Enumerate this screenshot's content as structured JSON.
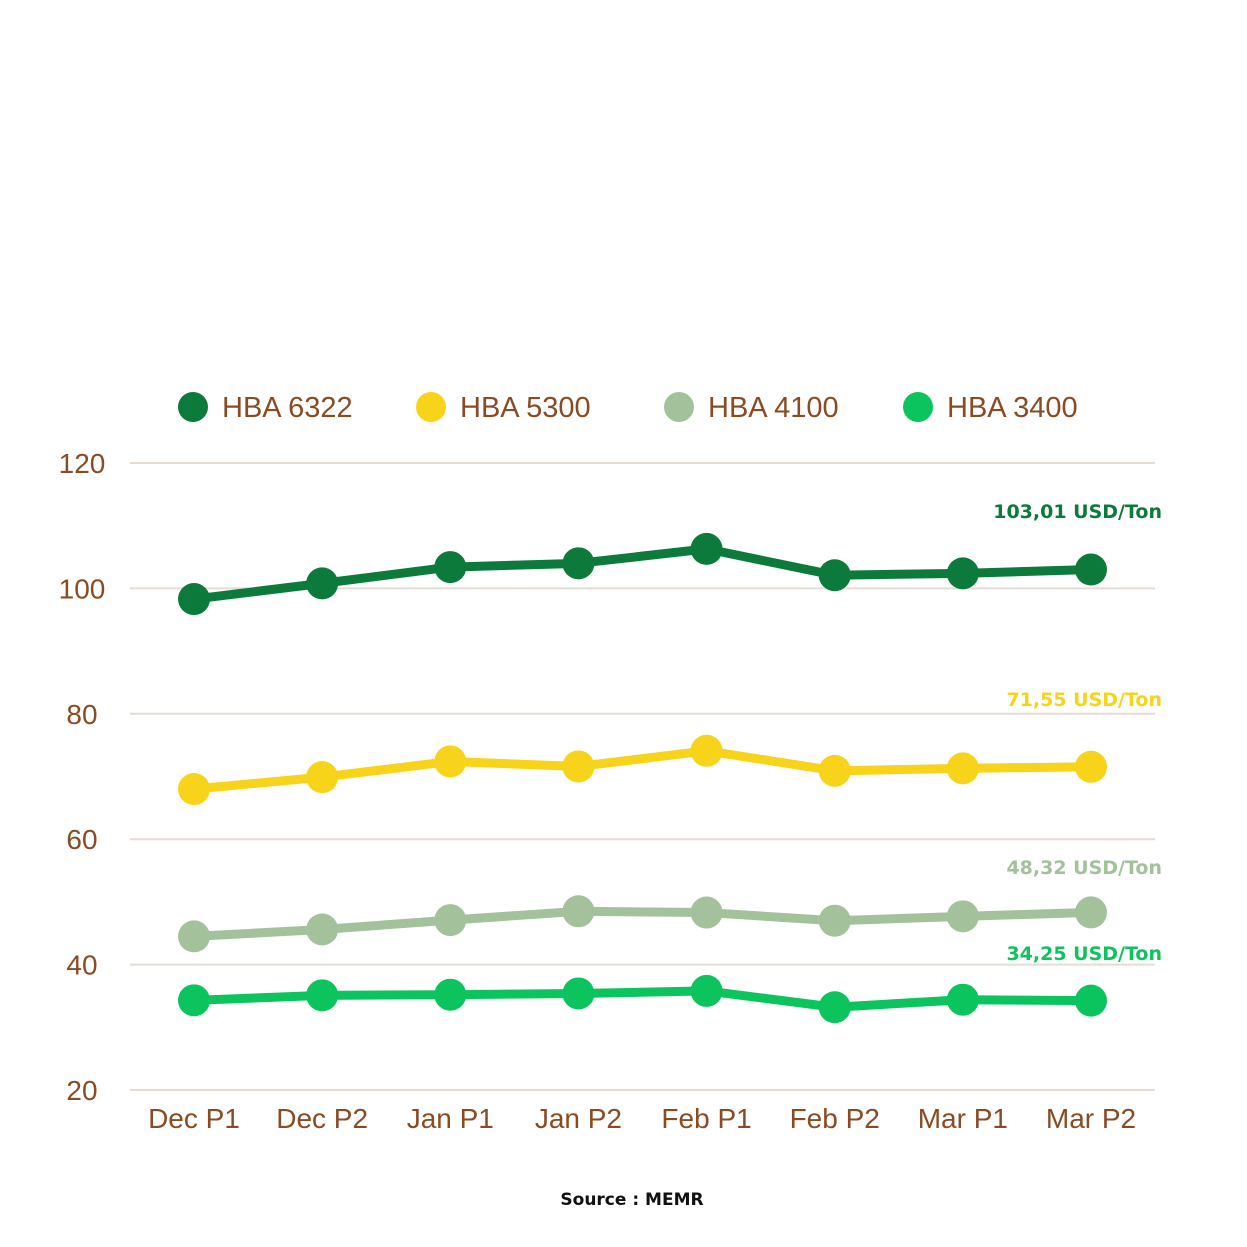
{
  "chart_data": {
    "type": "line",
    "title": "",
    "xlabel": "",
    "ylabel": "",
    "ylim": [
      20,
      120
    ],
    "yticks": [
      20,
      40,
      60,
      80,
      100,
      120
    ],
    "grid": true,
    "legend_position": "top",
    "categories": [
      "Dec P1",
      "Dec P2",
      "Jan P1",
      "Jan P2",
      "Feb P1",
      "Feb P2",
      "Mar P1",
      "Mar P2"
    ],
    "series": [
      {
        "name": "HBA 6322",
        "color": "#0b7a3a",
        "values": [
          98.3,
          100.8,
          103.4,
          104.0,
          106.3,
          102.1,
          102.4,
          103.01
        ],
        "end_label": "103,01 USD/Ton"
      },
      {
        "name": "HBA 5300",
        "color": "#f7d31a",
        "values": [
          68.0,
          69.9,
          72.4,
          71.6,
          74.1,
          70.9,
          71.3,
          71.55
        ],
        "end_label": "71,55 USD/Ton"
      },
      {
        "name": "HBA 4100",
        "color": "#a3c29c",
        "values": [
          44.5,
          45.6,
          47.1,
          48.5,
          48.3,
          47.0,
          47.7,
          48.32
        ],
        "end_label": "48,32 USD/Ton"
      },
      {
        "name": "HBA 3400",
        "color": "#0cc45e",
        "values": [
          34.3,
          35.1,
          35.2,
          35.4,
          35.8,
          33.2,
          34.4,
          34.25
        ],
        "end_label": "34,25 USD/Ton"
      }
    ],
    "source": "Source : MEMR"
  }
}
